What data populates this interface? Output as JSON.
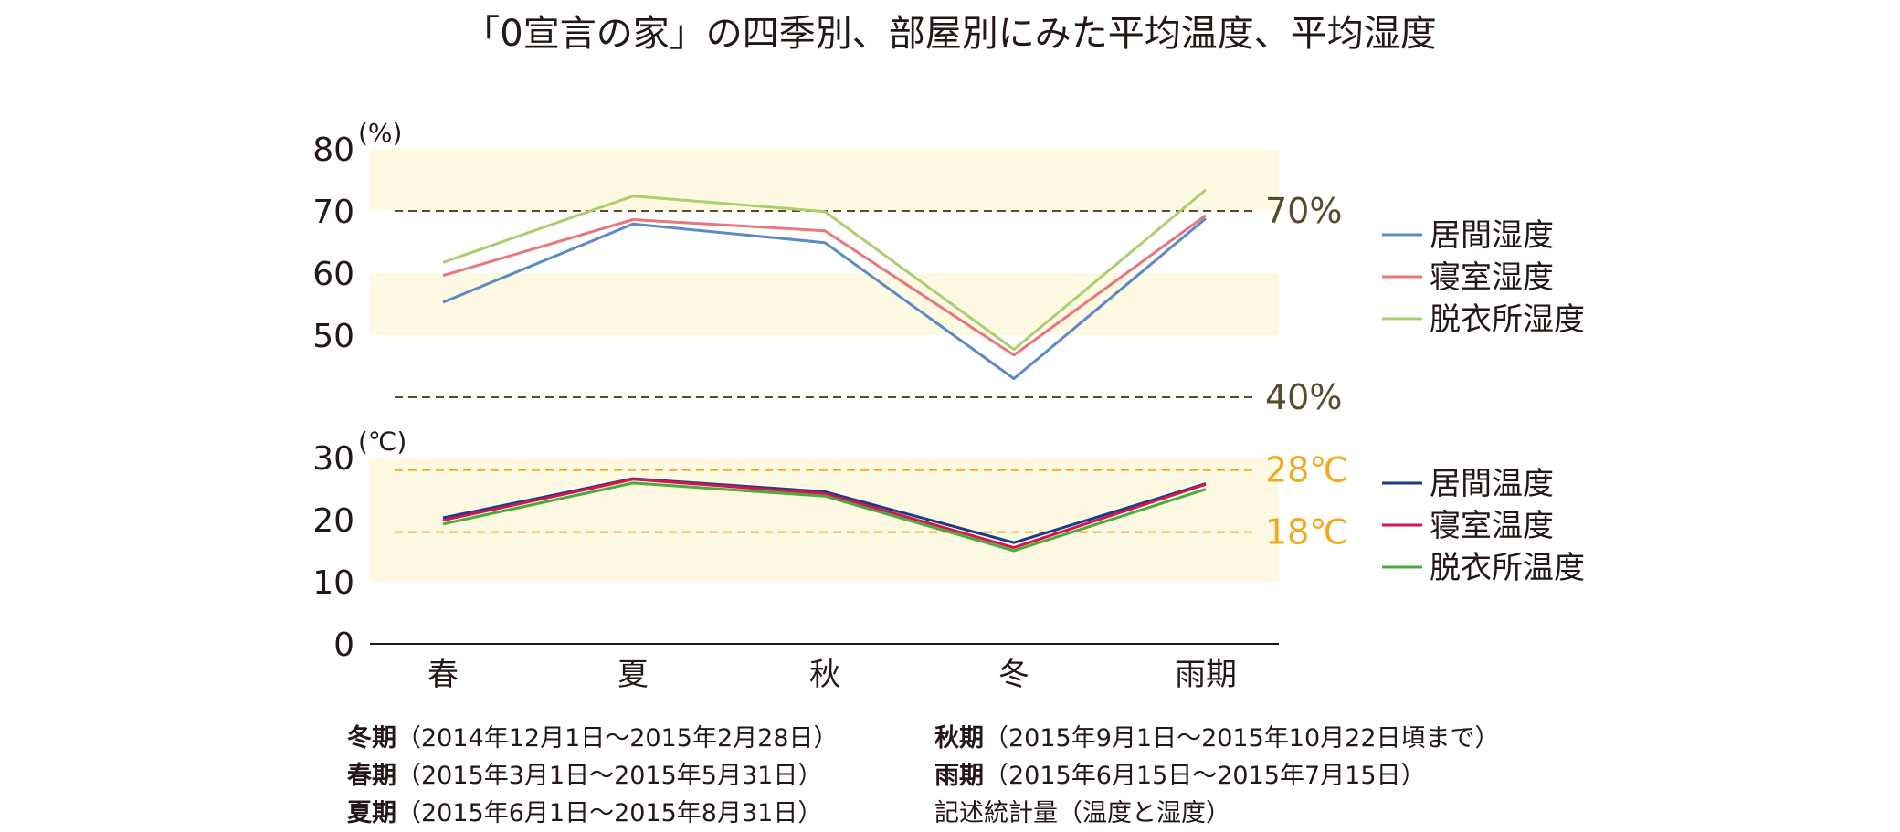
{
  "title": "「0宣言の家」の四季別、部屋別にみた平均温度、平均湿度",
  "chart_data": {
    "type": "line",
    "categories": [
      "春",
      "夏",
      "秋",
      "冬",
      "雨期"
    ],
    "humidity_unit": "(%)",
    "temperature_unit": "(℃)",
    "humidity_ticks": [
      "80",
      "70",
      "60",
      "50"
    ],
    "temperature_ticks": [
      "30",
      "20",
      "10",
      "0"
    ],
    "humidity_range": [
      40,
      80
    ],
    "temperature_range": [
      0,
      30
    ],
    "bands": {
      "color": "#fdf9e3",
      "humidity": [
        [
          70,
          80
        ],
        [
          50,
          60
        ]
      ],
      "temperature": [
        [
          20,
          30
        ],
        [
          10,
          20
        ]
      ]
    },
    "reference_lines": [
      {
        "label": "70%",
        "axis": "humidity",
        "value": 70,
        "color": "#594a2c"
      },
      {
        "label": "40%",
        "axis": "humidity",
        "value": 40,
        "color": "#594a2c"
      },
      {
        "label": "28℃",
        "axis": "temperature",
        "value": 28,
        "color": "#f3a81c"
      },
      {
        "label": "18℃",
        "axis": "temperature",
        "value": 18,
        "color": "#f3a81c"
      }
    ],
    "humidity_series": [
      {
        "name": "居間湿度",
        "color": "#5b8ac6",
        "values": [
          55.3,
          67.9,
          64.9,
          43.0,
          68.8
        ]
      },
      {
        "name": "寝室湿度",
        "color": "#e8767a",
        "values": [
          59.6,
          68.6,
          66.8,
          46.8,
          69.3
        ]
      },
      {
        "name": "脱衣所湿度",
        "color": "#a9cf6f",
        "values": [
          61.7,
          72.4,
          69.9,
          47.7,
          73.4
        ]
      }
    ],
    "temperature_series": [
      {
        "name": "居間温度",
        "color": "#1b3c8c",
        "values": [
          20.3,
          26.6,
          24.5,
          16.3,
          25.8
        ]
      },
      {
        "name": "寝室温度",
        "color": "#d6144d",
        "values": [
          19.9,
          26.5,
          24.2,
          15.5,
          25.7
        ]
      },
      {
        "name": "脱衣所温度",
        "color": "#4bab3a",
        "values": [
          19.3,
          25.9,
          23.8,
          15.0,
          24.9
        ]
      }
    ]
  },
  "notes": {
    "left": [
      {
        "label": "冬期",
        "text": "（2014年12月1日～2015年2月28日）"
      },
      {
        "label": "春期",
        "text": "（2015年3月1日～2015年5月31日）"
      },
      {
        "label": "夏期",
        "text": "（2015年6月1日～2015年8月31日）"
      }
    ],
    "right": [
      {
        "label": "秋期",
        "text": "（2015年9月1日～2015年10月22日頃まで）"
      },
      {
        "label": "雨期",
        "text": "（2015年6月15日～2015年7月15日）"
      },
      {
        "label": "",
        "text": "記述統計量（温度と湿度）"
      }
    ]
  }
}
